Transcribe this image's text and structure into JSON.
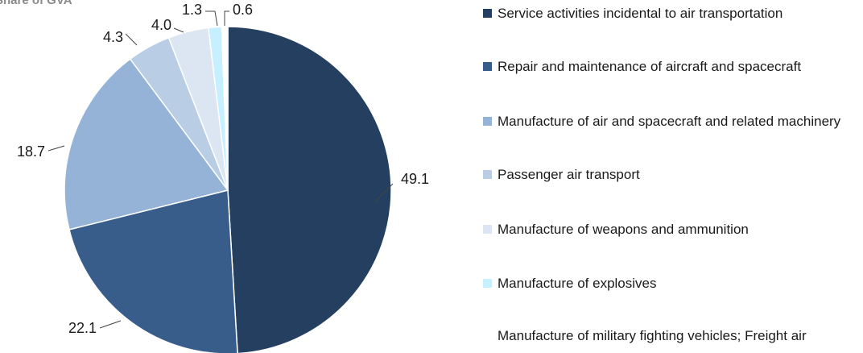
{
  "chart_data": {
    "type": "pie",
    "title": "Share of GVA",
    "labels": [
      "Service activities incidental to air transportation",
      "Repair and maintenance of aircraft and spacecraft",
      "Manufacture of air and spacecraft and related machinery",
      "Passenger air transport",
      "Manufacture of weapons and ammunition",
      "Manufacture of explosives",
      "Manufacture of military fighting vehicles; Freight air"
    ],
    "values": [
      49.1,
      22.1,
      18.7,
      4.3,
      4.0,
      1.3,
      0.6
    ],
    "value_labels": [
      "49.1",
      "22.1",
      "18.7",
      "4.3",
      "4.0",
      "1.3",
      "0.6"
    ],
    "colors": [
      "#243f60",
      "#385d8a",
      "#95b3d7",
      "#b9cde5",
      "#dce6f2",
      "#c6efff",
      "#ffffff"
    ],
    "legend_position": "right",
    "start": "12 o'clock, clockwise"
  }
}
